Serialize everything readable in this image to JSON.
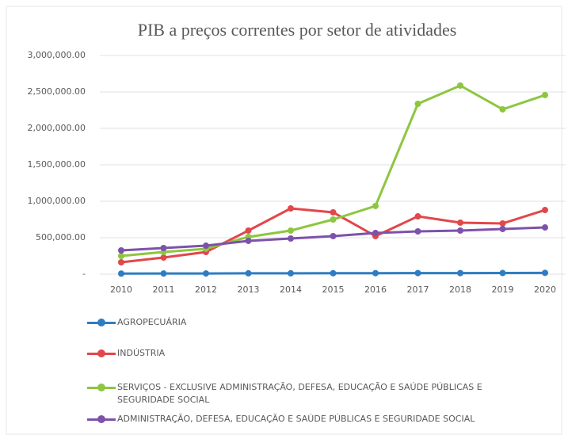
{
  "chart_data": {
    "type": "line",
    "title": "PIB a preços correntes por setor de atividades",
    "x": [
      2010,
      2011,
      2012,
      2013,
      2014,
      2015,
      2016,
      2017,
      2018,
      2019,
      2020
    ],
    "series": [
      {
        "name": "AGROPECUÁRIA",
        "color": "#2e7dc2",
        "values": [
          8000,
          9000,
          10000,
          12000,
          12000,
          13000,
          14000,
          15000,
          15000,
          16000,
          18000
        ]
      },
      {
        "name": "INDÚSTRIA",
        "color": "#e2474a",
        "values": [
          163000,
          228000,
          304000,
          598000,
          902000,
          848000,
          522000,
          793000,
          707000,
          696000,
          880000
        ]
      },
      {
        "name": "SERVIÇOS - EXCLUSIVE ADMINISTRAÇÃO, DEFESA, EDUCAÇÃO E SAÚDE PÚBLICAS E SEGURIDADE SOCIAL",
        "color": "#8dc63f",
        "values": [
          250000,
          304000,
          348000,
          511000,
          598000,
          750000,
          935000,
          2337000,
          2587000,
          2261000,
          2457000
        ]
      },
      {
        "name": "ADMINISTRAÇÃO, DEFESA, EDUCAÇÃO E SAÚDE PÚBLICAS E SEGURIDADE SOCIAL",
        "color": "#7d52aa",
        "values": [
          326000,
          359000,
          391000,
          457000,
          489000,
          522000,
          565000,
          587000,
          598000,
          620000,
          641000
        ]
      }
    ],
    "xlim": [
      2010,
      2020
    ],
    "ylim": [
      0,
      3000000
    ],
    "yticks": [
      {
        "value": 0,
        "label": "-"
      },
      {
        "value": 500000,
        "label": "500,000.00"
      },
      {
        "value": 1000000,
        "label": "1,000,000.00"
      },
      {
        "value": 1500000,
        "label": "1,500,000.00"
      },
      {
        "value": 2000000,
        "label": "2,000,000.00"
      },
      {
        "value": 2500000,
        "label": "2,500,000.00"
      },
      {
        "value": 3000000,
        "label": "3,000,000.00"
      }
    ],
    "grid": true,
    "legend": "bottom"
  }
}
